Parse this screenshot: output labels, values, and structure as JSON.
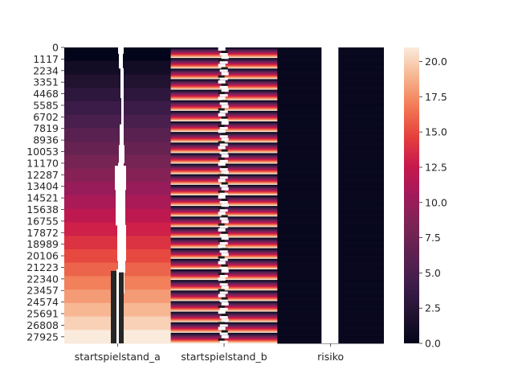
{
  "chart_data": {
    "type": "heatmap",
    "title": "",
    "xlabel": "",
    "ylabel": "",
    "x_categories": [
      "startspielstand_a",
      "startspielstand_b",
      "risiko"
    ],
    "y_tick_labels": [
      "0",
      "1117",
      "2234",
      "3351",
      "4468",
      "5585",
      "6702",
      "7819",
      "8936",
      "10053",
      "11170",
      "12287",
      "13404",
      "14521",
      "15638",
      "16755",
      "17872",
      "18989",
      "20106",
      "21223",
      "22340",
      "23457",
      "24574",
      "25691",
      "26808",
      "27925"
    ],
    "y_range": [
      0,
      28560
    ],
    "colorbar": {
      "range": [
        0,
        21
      ],
      "ticks": [
        "0.0",
        "2.5",
        "5.0",
        "7.5",
        "10.0",
        "12.5",
        "15.0",
        "17.5",
        "20.0"
      ],
      "colormap": "rocket"
    },
    "columns": [
      {
        "name": "startspielstand_a",
        "pattern": "step ramp: value increases 0 → 21 in equal blocks from top to bottom; narrow white/black lines inside the column",
        "value_range": [
          0,
          21
        ]
      },
      {
        "name": "startspielstand_b",
        "pattern": "cycles 0 → 21 repeatedly within each block of rows (~28 cycles); white/black markings inside",
        "value_range": [
          0,
          21
        ]
      },
      {
        "name": "risiko",
        "pattern": "near zero everywhere with a white missing stripe",
        "value_range": [
          0,
          0.5
        ]
      }
    ]
  }
}
